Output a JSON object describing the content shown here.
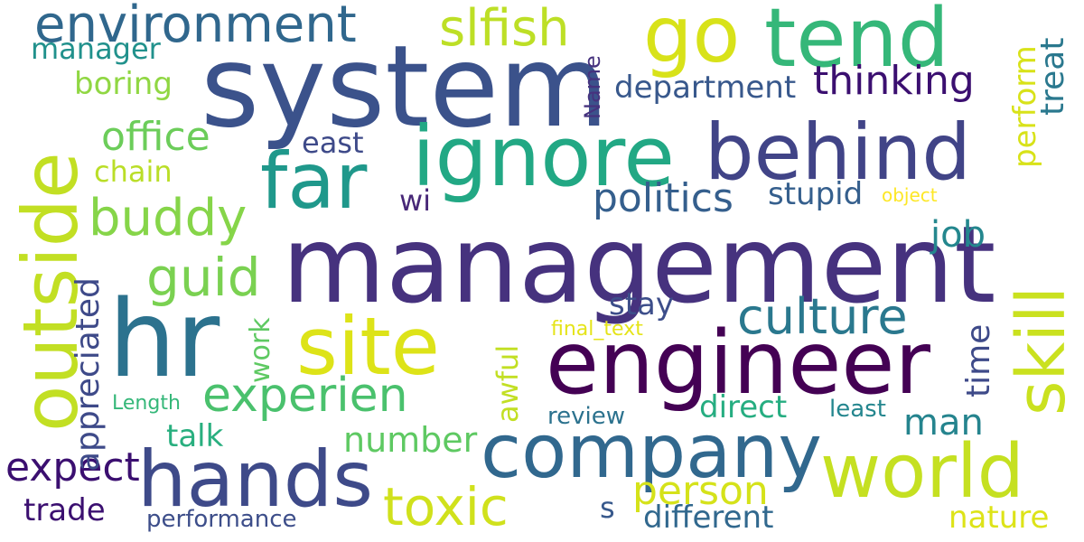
{
  "words": [
    {
      "text": "management",
      "color": "#46327e"
    },
    {
      "text": "system",
      "color": "#3b528b"
    },
    {
      "text": "hr",
      "color": "#2c728e"
    },
    {
      "text": "engineer",
      "color": "#440154"
    },
    {
      "text": "company",
      "color": "#31688e"
    },
    {
      "text": "hands",
      "color": "#3e4a89"
    },
    {
      "text": "ignore",
      "color": "#22a884"
    },
    {
      "text": "behind",
      "color": "#414487"
    },
    {
      "text": "outside",
      "color": "#c2df23"
    },
    {
      "text": "site",
      "color": "#dde318"
    },
    {
      "text": "tend",
      "color": "#35b779"
    },
    {
      "text": "go",
      "color": "#d8e219"
    },
    {
      "text": "far",
      "color": "#1f988b"
    },
    {
      "text": "skill",
      "color": "#cae11f"
    },
    {
      "text": "world",
      "color": "#c5e021"
    },
    {
      "text": "environment",
      "color": "#30678d"
    },
    {
      "text": "culture",
      "color": "#2a788e"
    },
    {
      "text": "experien",
      "color": "#4ac16d"
    },
    {
      "text": "toxic",
      "color": "#d0e11c"
    },
    {
      "text": "buddy",
      "color": "#86d549"
    },
    {
      "text": "guid",
      "color": "#7ad151"
    },
    {
      "text": "slfish",
      "color": "#bddf26"
    },
    {
      "text": "thinking",
      "color": "#3b0f70"
    },
    {
      "text": "office",
      "color": "#6ccd5a"
    },
    {
      "text": "politics",
      "color": "#355f8d"
    },
    {
      "text": "expect",
      "color": "#3b0f70"
    },
    {
      "text": "person",
      "color": "#d5e21a"
    },
    {
      "text": "department",
      "color": "#38588c"
    },
    {
      "text": "job",
      "color": "#24878e"
    },
    {
      "text": "man",
      "color": "#25848e"
    },
    {
      "text": "number",
      "color": "#5ec962"
    },
    {
      "text": "stay",
      "color": "#3d4e8a"
    },
    {
      "text": "stupid",
      "color": "#355f8d"
    },
    {
      "text": "trade",
      "color": "#3b0f70"
    },
    {
      "text": "direct",
      "color": "#26ad81"
    },
    {
      "text": "different",
      "color": "#31688e"
    },
    {
      "text": "nature",
      "color": "#dde318"
    },
    {
      "text": "talk",
      "color": "#29af7f"
    },
    {
      "text": "manager",
      "color": "#21918c"
    },
    {
      "text": "boring",
      "color": "#90d743"
    },
    {
      "text": "chain",
      "color": "#bade28"
    },
    {
      "text": "east",
      "color": "#3e4a89"
    },
    {
      "text": "wi",
      "color": "#482878"
    },
    {
      "text": "least",
      "color": "#24868e"
    },
    {
      "text": "review",
      "color": "#2c728e"
    },
    {
      "text": "s",
      "color": "#38598c"
    },
    {
      "text": "performance",
      "color": "#3d4e8a"
    },
    {
      "text": "final_text",
      "color": "#e5e419"
    },
    {
      "text": "object",
      "color": "#fde725"
    },
    {
      "text": "Length",
      "color": "#35b779"
    },
    {
      "text": "treat",
      "color": "#2a788e"
    },
    {
      "text": "perform",
      "color": "#d8e219"
    },
    {
      "text": "Name",
      "color": "#46327e"
    },
    {
      "text": "time",
      "color": "#3e4a89"
    },
    {
      "text": "awful",
      "color": "#c2df23"
    },
    {
      "text": "work",
      "color": "#5ec962"
    },
    {
      "text": "appreciated",
      "color": "#3e4a89"
    }
  ]
}
